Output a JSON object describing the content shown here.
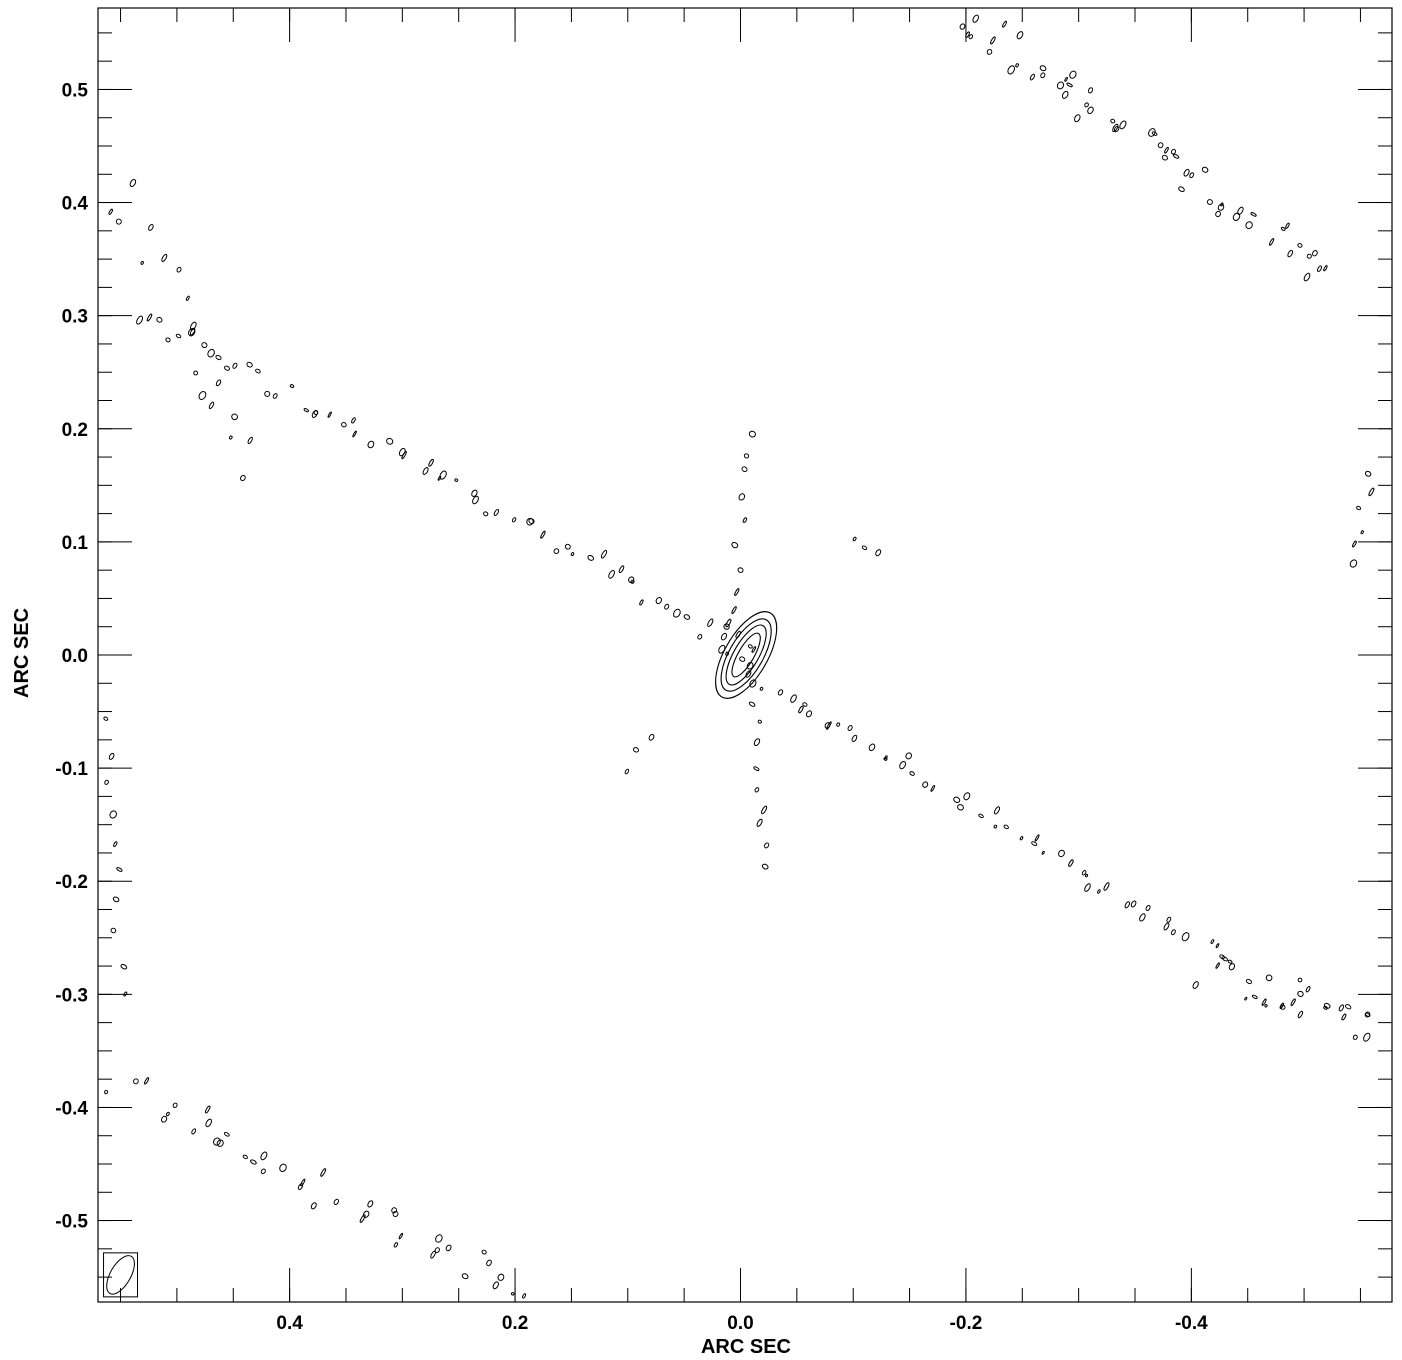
{
  "chart_data": {
    "type": "contour",
    "xlabel": "ARC SEC",
    "ylabel": "ARC SEC",
    "xlim": [
      0.57,
      -0.578
    ],
    "ylim": [
      -0.572,
      0.572
    ],
    "x_ticks": [
      0.4,
      0.2,
      0.0,
      -0.2,
      -0.4
    ],
    "x_tick_labels": [
      "0.4",
      "0.2",
      "0.0",
      "-0.2",
      "-0.4"
    ],
    "y_ticks": [
      0.5,
      0.4,
      0.3,
      0.2,
      0.1,
      0.0,
      -0.1,
      -0.2,
      -0.3,
      -0.4,
      -0.5
    ],
    "y_tick_labels": [
      "0.5",
      "0.4",
      "0.3",
      "0.2",
      "0.1",
      "0.0",
      "-0.1",
      "-0.2",
      "-0.3",
      "-0.4",
      "-0.5"
    ],
    "minor_ticks_per_interval": 4,
    "colors": {
      "line": "#000000",
      "background": "#ffffff"
    },
    "core_source": {
      "x": -0.005,
      "y": 0.0,
      "contours": [
        {
          "dx": 0.007,
          "dy": 0.022,
          "angle": 30
        },
        {
          "dx": 0.011,
          "dy": 0.03,
          "angle": 30
        },
        {
          "dx": 0.015,
          "dy": 0.036,
          "angle": 30
        },
        {
          "dx": 0.019,
          "dy": 0.043,
          "angle": 30
        }
      ]
    },
    "beam": {
      "x": 0.55,
      "y": -0.548,
      "major": 0.038,
      "minor": 0.009,
      "angle": 30
    },
    "features": [
      {
        "x1": 0.53,
        "y1": 0.3,
        "x2": -0.02,
        "y2": 0.0,
        "n": 60,
        "spread": 0.01
      },
      {
        "x1": 0.02,
        "y1": 0.0,
        "x2": -0.4,
        "y2": -0.25,
        "n": 50,
        "spread": 0.008
      },
      {
        "x1": 0.01,
        "y1": 0.02,
        "x2": -0.01,
        "y2": 0.2,
        "n": 10,
        "spread": 0.005
      },
      {
        "x1": -0.01,
        "y1": -0.02,
        "x2": -0.02,
        "y2": -0.19,
        "n": 10,
        "spread": 0.005
      },
      {
        "x1": -0.2,
        "y1": 0.565,
        "x2": -0.52,
        "y2": 0.34,
        "n": 55,
        "spread": 0.015
      },
      {
        "x1": -0.4,
        "y1": -0.27,
        "x2": -0.56,
        "y2": -0.33,
        "n": 30,
        "spread": 0.02
      },
      {
        "x1": 0.55,
        "y1": -0.38,
        "x2": 0.19,
        "y2": -0.565,
        "n": 40,
        "spread": 0.015
      },
      {
        "x1": 0.56,
        "y1": 0.42,
        "x2": 0.43,
        "y2": 0.17,
        "n": 20,
        "spread": 0.015
      },
      {
        "x1": 0.56,
        "y1": -0.06,
        "x2": 0.55,
        "y2": -0.3,
        "n": 10,
        "spread": 0.005
      },
      {
        "x1": -0.56,
        "y1": 0.16,
        "x2": -0.54,
        "y2": 0.08,
        "n": 6,
        "spread": 0.004
      },
      {
        "x1": 0.1,
        "y1": -0.1,
        "x2": 0.08,
        "y2": -0.07,
        "n": 3,
        "spread": 0.003
      },
      {
        "x1": -0.1,
        "y1": 0.1,
        "x2": -0.12,
        "y2": 0.09,
        "n": 3,
        "spread": 0.003
      }
    ]
  }
}
